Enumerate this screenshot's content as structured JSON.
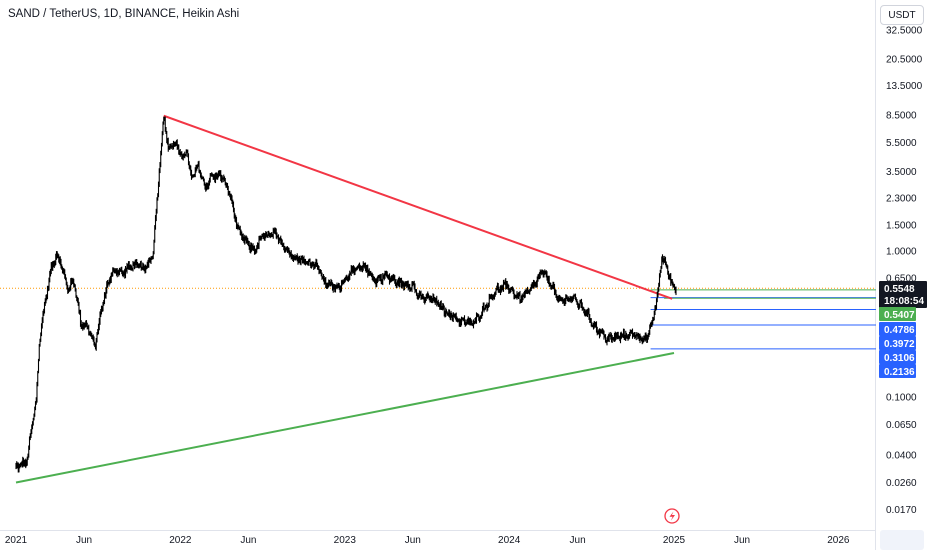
{
  "header": {
    "title": "SAND / TetherUS, 1D, BINANCE, Heikin Ashi",
    "currency": "USDT"
  },
  "colors": {
    "upper_trendline": "#f23645",
    "lower_trendline": "#4caf50",
    "candles": "#000000",
    "current_price_line": "#ff9800",
    "support_line": "#2962ff",
    "resistance_line": "#4caf50"
  },
  "chart_data": {
    "type": "candlestick",
    "scale": "log",
    "y_ticks": [
      "32.5000",
      "20.5000",
      "13.5000",
      "8.5000",
      "5.5000",
      "3.5000",
      "2.3000",
      "1.5000",
      "1.0000",
      "0.6500",
      "0.1000",
      "0.0650",
      "0.0400",
      "0.0260",
      "0.0170"
    ],
    "x_ticks": [
      "2021",
      "Jun",
      "2022",
      "Jun",
      "2023",
      "Jun",
      "2024",
      "Jun",
      "2025",
      "Jun",
      "2026"
    ],
    "current_price": {
      "value": "0.5548",
      "countdown": "18:08:54"
    },
    "levels": [
      {
        "label": "0.5407",
        "value": 0.5407,
        "type": "resistance"
      },
      {
        "label": "0.4786",
        "value": 0.4786,
        "type": "support"
      },
      {
        "label": "0.3972",
        "value": 0.3972,
        "type": "support"
      },
      {
        "label": "0.3106",
        "value": 0.3106,
        "type": "support"
      },
      {
        "label": "0.2136",
        "value": 0.2136,
        "type": "support"
      }
    ],
    "price_path": [
      [
        "2021-01-01",
        0.033
      ],
      [
        "2021-01-25",
        0.036
      ],
      [
        "2021-02-05",
        0.062
      ],
      [
        "2021-02-15",
        0.095
      ],
      [
        "2021-02-22",
        0.24
      ],
      [
        "2021-03-05",
        0.42
      ],
      [
        "2021-03-20",
        0.75
      ],
      [
        "2021-04-01",
        0.95
      ],
      [
        "2021-04-12",
        0.8
      ],
      [
        "2021-04-25",
        0.55
      ],
      [
        "2021-05-10",
        0.62
      ],
      [
        "2021-05-25",
        0.32
      ],
      [
        "2021-06-10",
        0.3
      ],
      [
        "2021-06-25",
        0.22
      ],
      [
        "2021-07-10",
        0.4
      ],
      [
        "2021-07-25",
        0.62
      ],
      [
        "2021-08-10",
        0.75
      ],
      [
        "2021-08-25",
        0.7
      ],
      [
        "2021-09-10",
        0.78
      ],
      [
        "2021-09-25",
        0.8
      ],
      [
        "2021-10-15",
        0.75
      ],
      [
        "2021-11-01",
        0.95
      ],
      [
        "2021-11-15",
        3.5
      ],
      [
        "2021-11-25",
        8.4
      ],
      [
        "2021-12-05",
        5.0
      ],
      [
        "2021-12-20",
        5.5
      ],
      [
        "2022-01-05",
        4.3
      ],
      [
        "2022-01-15",
        4.9
      ],
      [
        "2022-01-25",
        3.1
      ],
      [
        "2022-02-10",
        3.8
      ],
      [
        "2022-02-25",
        2.7
      ],
      [
        "2022-03-10",
        3.2
      ],
      [
        "2022-04-01",
        3.3
      ],
      [
        "2022-04-20",
        2.5
      ],
      [
        "2022-05-10",
        1.35
      ],
      [
        "2022-06-01",
        1.1
      ],
      [
        "2022-06-15",
        1.0
      ],
      [
        "2022-07-01",
        1.25
      ],
      [
        "2022-08-01",
        1.3
      ],
      [
        "2022-09-01",
        0.95
      ],
      [
        "2022-10-01",
        0.85
      ],
      [
        "2022-11-01",
        0.8
      ],
      [
        "2022-11-15",
        0.62
      ],
      [
        "2022-12-15",
        0.55
      ],
      [
        "2023-01-15",
        0.72
      ],
      [
        "2023-02-15",
        0.78
      ],
      [
        "2023-03-10",
        0.62
      ],
      [
        "2023-04-01",
        0.68
      ],
      [
        "2023-05-01",
        0.6
      ],
      [
        "2023-06-01",
        0.58
      ],
      [
        "2023-06-15",
        0.48
      ],
      [
        "2023-07-15",
        0.47
      ],
      [
        "2023-08-15",
        0.38
      ],
      [
        "2023-09-15",
        0.33
      ],
      [
        "2023-10-15",
        0.32
      ],
      [
        "2023-11-10",
        0.42
      ],
      [
        "2023-12-01",
        0.53
      ],
      [
        "2023-12-25",
        0.58
      ],
      [
        "2024-01-25",
        0.47
      ],
      [
        "2024-02-20",
        0.55
      ],
      [
        "2024-03-15",
        0.72
      ],
      [
        "2024-04-05",
        0.58
      ],
      [
        "2024-04-20",
        0.45
      ],
      [
        "2024-05-20",
        0.48
      ],
      [
        "2024-06-15",
        0.4
      ],
      [
        "2024-07-10",
        0.3
      ],
      [
        "2024-08-05",
        0.25
      ],
      [
        "2024-09-05",
        0.26
      ],
      [
        "2024-10-01",
        0.27
      ],
      [
        "2024-10-25",
        0.25
      ],
      [
        "2024-11-05",
        0.26
      ],
      [
        "2024-11-15",
        0.34
      ],
      [
        "2024-11-25",
        0.48
      ],
      [
        "2024-12-05",
        0.92
      ],
      [
        "2024-12-15",
        0.78
      ],
      [
        "2024-12-28",
        0.58
      ],
      [
        "2025-01-06",
        0.5548
      ]
    ],
    "trendlines": [
      {
        "name": "upper",
        "from": [
          "2021-11-25",
          8.4
        ],
        "to": [
          "2024-12-28",
          0.47
        ]
      },
      {
        "name": "lower",
        "from": [
          "2021-01-01",
          0.026
        ],
        "to": [
          "2025-01-01",
          0.2
        ]
      }
    ]
  }
}
